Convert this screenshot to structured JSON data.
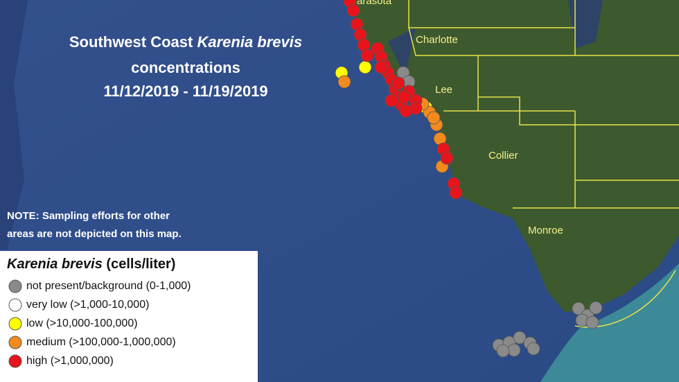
{
  "title": {
    "prefix": "Southwest Coast",
    "species": "Karenia brevis",
    "line2": "concentrations",
    "dates": "11/12/2019 - 11/19/2019"
  },
  "counties": [
    "Sarasota",
    "Charlotte",
    "Lee",
    "Collier",
    "Monroe"
  ],
  "note": {
    "line1": "NOTE: Sampling efforts for other",
    "line2": "areas are not depicted on this map."
  },
  "legend": {
    "species": "Karenia brevis",
    "unit": "(cells/liter)",
    "items": [
      {
        "label": "not present/background (0-1,000)",
        "color": "#8a8a8a"
      },
      {
        "label": "very low (>1,000-10,000)",
        "color": "#ffffff"
      },
      {
        "label": "low (>10,000-100,000)",
        "color": "#ffff00"
      },
      {
        "label": "medium (>100,000-1,000,000)",
        "color": "#f28a1e"
      },
      {
        "label": "high (>1,000,000)",
        "color": "#e8141b"
      }
    ]
  }
}
